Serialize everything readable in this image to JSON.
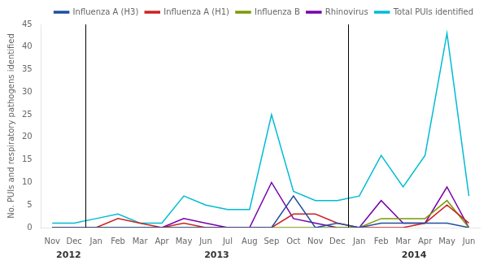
{
  "chart_data": {
    "type": "line",
    "categories": [
      "Nov",
      "Dec",
      "Jan",
      "Feb",
      "Mar",
      "Apr",
      "May",
      "Jun",
      "Jul",
      "Aug",
      "Sep",
      "Oct",
      "Nov",
      "Dec",
      "Jan",
      "Feb",
      "Mar",
      "Apr",
      "May",
      "Jun"
    ],
    "series": [
      {
        "name": "Influenza A (H3)",
        "color": "#1f4fa0",
        "values": [
          0,
          0,
          0,
          0,
          0,
          0,
          0,
          0,
          0,
          0,
          0,
          7,
          0,
          1,
          0,
          1,
          1,
          1,
          1,
          0
        ]
      },
      {
        "name": "Influenza A (H1)",
        "color": "#cc2222",
        "values": [
          0,
          0,
          0,
          2,
          1,
          0,
          1,
          0,
          0,
          0,
          0,
          3,
          3,
          1,
          0,
          0,
          0,
          1,
          5,
          1
        ]
      },
      {
        "name": "Influenza B",
        "color": "#7a9a00",
        "values": [
          0,
          0,
          0,
          0,
          0,
          0,
          0,
          0,
          0,
          0,
          0,
          0,
          0,
          0,
          0,
          2,
          2,
          2,
          6,
          0
        ]
      },
      {
        "name": "Rhinovirus",
        "color": "#7700aa",
        "values": [
          0,
          0,
          0,
          0,
          0,
          0,
          2,
          1,
          0,
          0,
          10,
          2,
          1,
          0,
          0,
          6,
          1,
          1,
          9,
          0
        ]
      },
      {
        "name": "Total PUIs identified",
        "color": "#00bcd4",
        "values": [
          1,
          1,
          2,
          3,
          1,
          1,
          7,
          5,
          4,
          4,
          25,
          8,
          6,
          6,
          7,
          16,
          9,
          16,
          43,
          7
        ]
      }
    ],
    "ylabel": "No. PUIs and respiratory pathogens identified",
    "ylim": [
      0,
      45
    ],
    "yticks": [
      0,
      5,
      10,
      15,
      20,
      25,
      30,
      35,
      40,
      45
    ],
    "grid": false,
    "legend": "upper right",
    "annotations": [
      {
        "text": "2012",
        "x": 0.75
      },
      {
        "text": "2013",
        "x": 7.5
      },
      {
        "text": "2014",
        "x": 16.5
      }
    ],
    "dividers": {
      "x": [
        1.5,
        13.5
      ],
      "color": "#000000"
    }
  }
}
